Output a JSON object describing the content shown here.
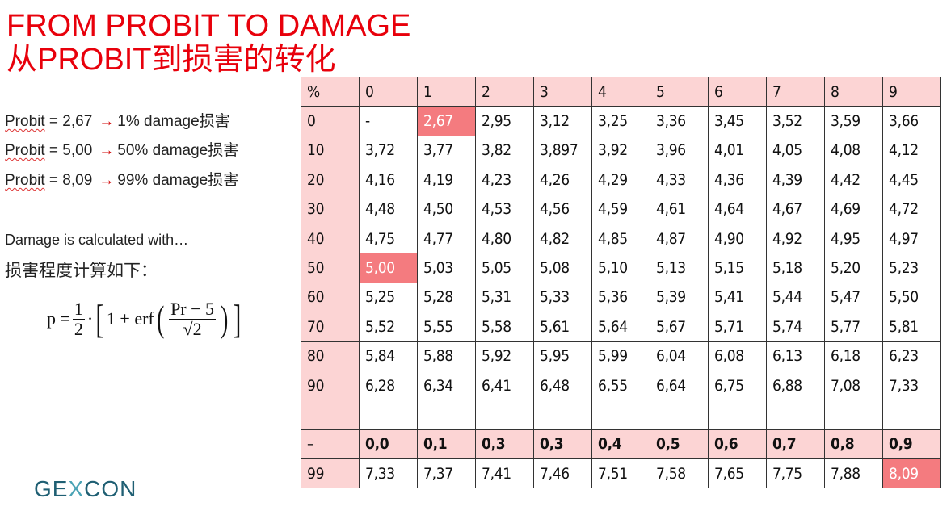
{
  "slide": {
    "title_en": "FROM PROBIT TO DAMAGE",
    "title_cn": "从PROBIT到损害的转化"
  },
  "probit_examples": [
    {
      "label": "Probit",
      "value": " = 2,67",
      "result": "1% damage损害"
    },
    {
      "label": "Probit",
      "value": " = 5,00",
      "result": "50% damage损害"
    },
    {
      "label": "Probit",
      "value": " = 8,09",
      "result": "99% damage损害"
    }
  ],
  "arrow_icon": "right-arrow",
  "damage_text_en": "Damage is calculated with…",
  "damage_text_cn": "损害程度计算如下：",
  "formula": {
    "lhs": "p =",
    "half_num": "1",
    "half_den": "2",
    "dot": "·",
    "lbracket": "[",
    "inner": "1 + erf",
    "lparen": "(",
    "frac_num": "Pr − 5",
    "frac_den": "√2",
    "rparen": ")",
    "rbracket": "]"
  },
  "colors": {
    "title": "#e8000b",
    "header_fill": "#fcd4d4",
    "highlight_fill": "#f47b7f",
    "logo": "#1f5f73"
  },
  "table": {
    "header": [
      "%",
      "0",
      "1",
      "2",
      "3",
      "4",
      "5",
      "6",
      "7",
      "8",
      "9"
    ],
    "rows": [
      [
        "0",
        "-",
        "2,67",
        "2,95",
        "3,12",
        "3,25",
        "3,36",
        "3,45",
        "3,52",
        "3,59",
        "3,66"
      ],
      [
        "10",
        "3,72",
        "3,77",
        "3,82",
        "3,897",
        "3,92",
        "3,96",
        "4,01",
        "4,05",
        "4,08",
        "4,12"
      ],
      [
        "20",
        "4,16",
        "4,19",
        "4,23",
        "4,26",
        "4,29",
        "4,33",
        "4,36",
        "4,39",
        "4,42",
        "4,45"
      ],
      [
        "30",
        "4,48",
        "4,50",
        "4,53",
        "4,56",
        "4,59",
        "4,61",
        "4,64",
        "4,67",
        "4,69",
        "4,72"
      ],
      [
        "40",
        "4,75",
        "4,77",
        "4,80",
        "4,82",
        "4,85",
        "4,87",
        "4,90",
        "4,92",
        "4,95",
        "4,97"
      ],
      [
        "50",
        "5,00",
        "5,03",
        "5,05",
        "5,08",
        "5,10",
        "5,13",
        "5,15",
        "5,18",
        "5,20",
        "5,23"
      ],
      [
        "60",
        "5,25",
        "5,28",
        "5,31",
        "5,33",
        "5,36",
        "5,39",
        "5,41",
        "5,44",
        "5,47",
        "5,50"
      ],
      [
        "70",
        "5,52",
        "5,55",
        "5,58",
        "5,61",
        "5,64",
        "5,67",
        "5,71",
        "5,74",
        "5,77",
        "5,81"
      ],
      [
        "80",
        "5,84",
        "5,88",
        "5,92",
        "5,95",
        "5,99",
        "6,04",
        "6,08",
        "6,13",
        "6,18",
        "6,23"
      ],
      [
        "90",
        "6,28",
        "6,34",
        "6,41",
        "6,48",
        "6,55",
        "6,64",
        "6,75",
        "6,88",
        "7,08",
        "7,33"
      ],
      [
        "",
        "",
        "",
        "",
        "",
        "",
        "",
        "",
        "",
        "",
        ""
      ]
    ],
    "subheader": [
      "–",
      "0,0",
      "0,1",
      "0,3",
      "0,3",
      "0,4",
      "0,5",
      "0,6",
      "0,7",
      "0,8",
      "0,9"
    ],
    "last_row": [
      "99",
      "7,33",
      "7,37",
      "7,41",
      "7,46",
      "7,51",
      "7,58",
      "7,65",
      "7,75",
      "7,88",
      "8,09"
    ],
    "highlighted": [
      "2,67",
      "5,00",
      "8,09"
    ]
  },
  "logo": {
    "part1": "GE",
    "part2": "X",
    "part3": "CON"
  }
}
